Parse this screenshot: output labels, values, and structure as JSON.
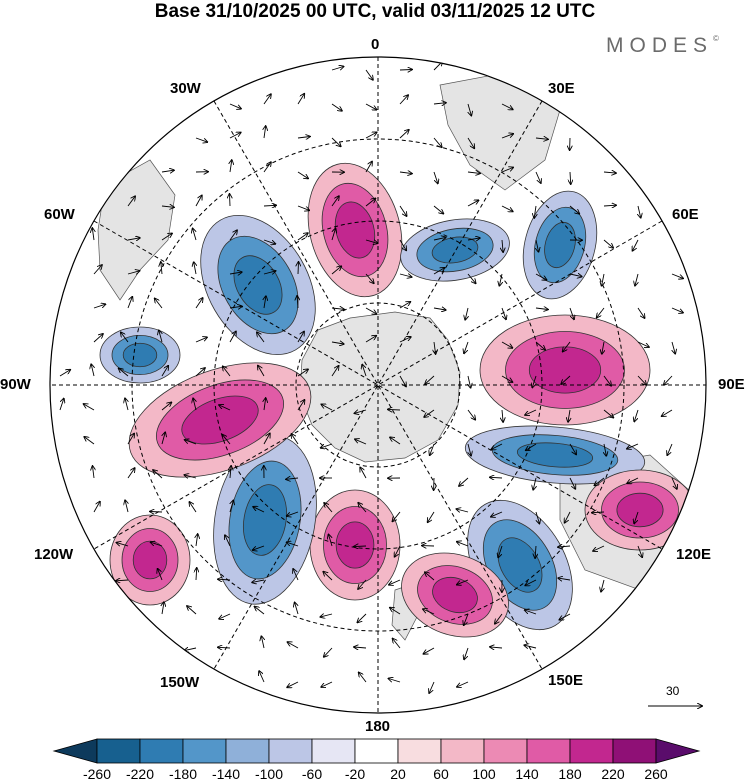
{
  "title": "Base 31/10/2025 00 UTC, valid 03/11/2025 12 UTC",
  "logo": "MODES",
  "logo_mark": "©",
  "longitudes": {
    "top": "0",
    "top_right": "30E",
    "upper_right": "60E",
    "right": "90E",
    "lower_right": "120E",
    "bottom_right": "150E",
    "bottom": "180",
    "bottom_left": "150W",
    "lower_left": "120W",
    "left": "90W",
    "upper_left": "60W",
    "top_left": "30W"
  },
  "reference_vector": "30",
  "colorbar": {
    "colors": [
      "#0d3a5c",
      "#17608f",
      "#2f7cb2",
      "#5396c9",
      "#8fb0d9",
      "#bcc6e6",
      "#e6e6f4",
      "#ffffff",
      "#f8dde0",
      "#f3b8c7",
      "#ec8ab4",
      "#e05ba6",
      "#c2278f",
      "#8f1076",
      "#5a0c6b"
    ],
    "tick_labels": [
      "-260",
      "-220",
      "-180",
      "-140",
      "-100",
      "-60",
      "-20",
      "20",
      "60",
      "100",
      "140",
      "180",
      "220",
      "260"
    ]
  },
  "map_colors": {
    "land": "#e4e4e4",
    "neg_strong": "#2f7cb2",
    "neg_mid": "#5396c9",
    "neg_weak": "#bcc6e6",
    "pos_strong": "#c2278f",
    "pos_mid": "#e05ba6",
    "pos_weak": "#f3b8c7"
  }
}
